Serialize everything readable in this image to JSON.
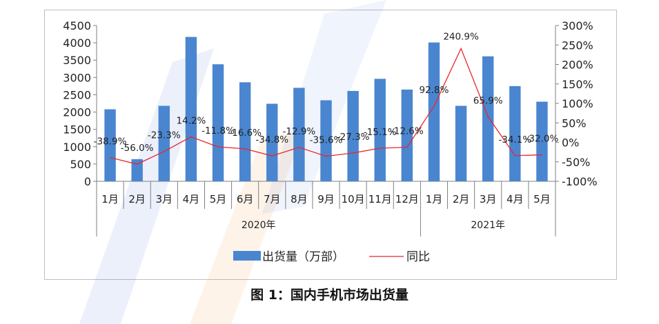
{
  "caption": "图 1：国内手机市场出货量",
  "chart_data": {
    "type": "bar",
    "categories": [
      "1月",
      "2月",
      "3月",
      "4月",
      "5月",
      "6月",
      "7月",
      "8月",
      "9月",
      "10月",
      "11月",
      "12月",
      "1月",
      "2月",
      "3月",
      "4月",
      "5月"
    ],
    "groups": [
      {
        "label": "2020年",
        "count": 12
      },
      {
        "label": "2021年",
        "count": 5
      }
    ],
    "series": [
      {
        "name": "出货量（万部）",
        "type": "bar",
        "axis": "left",
        "color": "#4a86cf",
        "values": [
          2080,
          640,
          2180,
          4170,
          3380,
          2860,
          2240,
          2700,
          2340,
          2610,
          2960,
          2650,
          4010,
          2180,
          3610,
          2750,
          2300
        ]
      },
      {
        "name": "同比",
        "type": "line",
        "axis": "right",
        "color": "#e8262b",
        "values": [
          -38.9,
          -56.0,
          -23.3,
          14.2,
          -11.8,
          -16.6,
          -34.8,
          -12.9,
          -35.6,
          -27.3,
          -15.1,
          -12.6,
          92.8,
          240.9,
          65.9,
          -34.1,
          -32.0
        ],
        "labels": [
          "-38.9%",
          "-56.0%",
          "-23.3%",
          "14.2%",
          "-11.8%",
          "-16.6%",
          "-34.8%",
          "-12.9%",
          "-35.6%",
          "-27.3%",
          "-15.1%",
          "-12.6%",
          "92.8%",
          "240.9%",
          "65.9%",
          "-34.1%",
          "-32.0%"
        ]
      }
    ],
    "y_left": {
      "min": 0,
      "max": 4500,
      "step": 500,
      "ticks": [
        "0",
        "500",
        "1000",
        "1500",
        "2000",
        "2500",
        "3000",
        "3500",
        "4000",
        "4500"
      ]
    },
    "y_right": {
      "min": -100,
      "max": 300,
      "step": 50,
      "ticks": [
        "-100%",
        "-50%",
        "0%",
        "50%",
        "100%",
        "150%",
        "200%",
        "250%",
        "300%"
      ]
    },
    "grid": false,
    "legend_position": "bottom"
  }
}
